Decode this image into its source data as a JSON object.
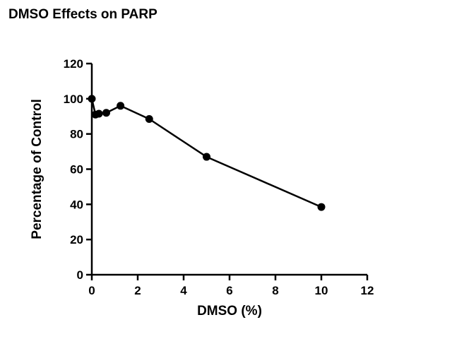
{
  "chart_data": {
    "type": "line",
    "title": "DMSO Effects on PARP",
    "xlabel": "DMSO (%)",
    "ylabel": "Percentage of Control",
    "xlim": [
      0,
      12
    ],
    "ylim": [
      0,
      120
    ],
    "xticks": [
      0,
      2,
      4,
      6,
      8,
      10,
      12
    ],
    "yticks": [
      0,
      20,
      40,
      60,
      80,
      100,
      120
    ],
    "grid": false,
    "series": [
      {
        "x": [
          0,
          0.16,
          0.31,
          0.63,
          1.25,
          2.5,
          5,
          10
        ],
        "y": [
          100,
          91,
          91.5,
          92,
          96,
          88.5,
          67,
          38.5
        ],
        "color": "#000000",
        "marker": "circle"
      }
    ]
  }
}
